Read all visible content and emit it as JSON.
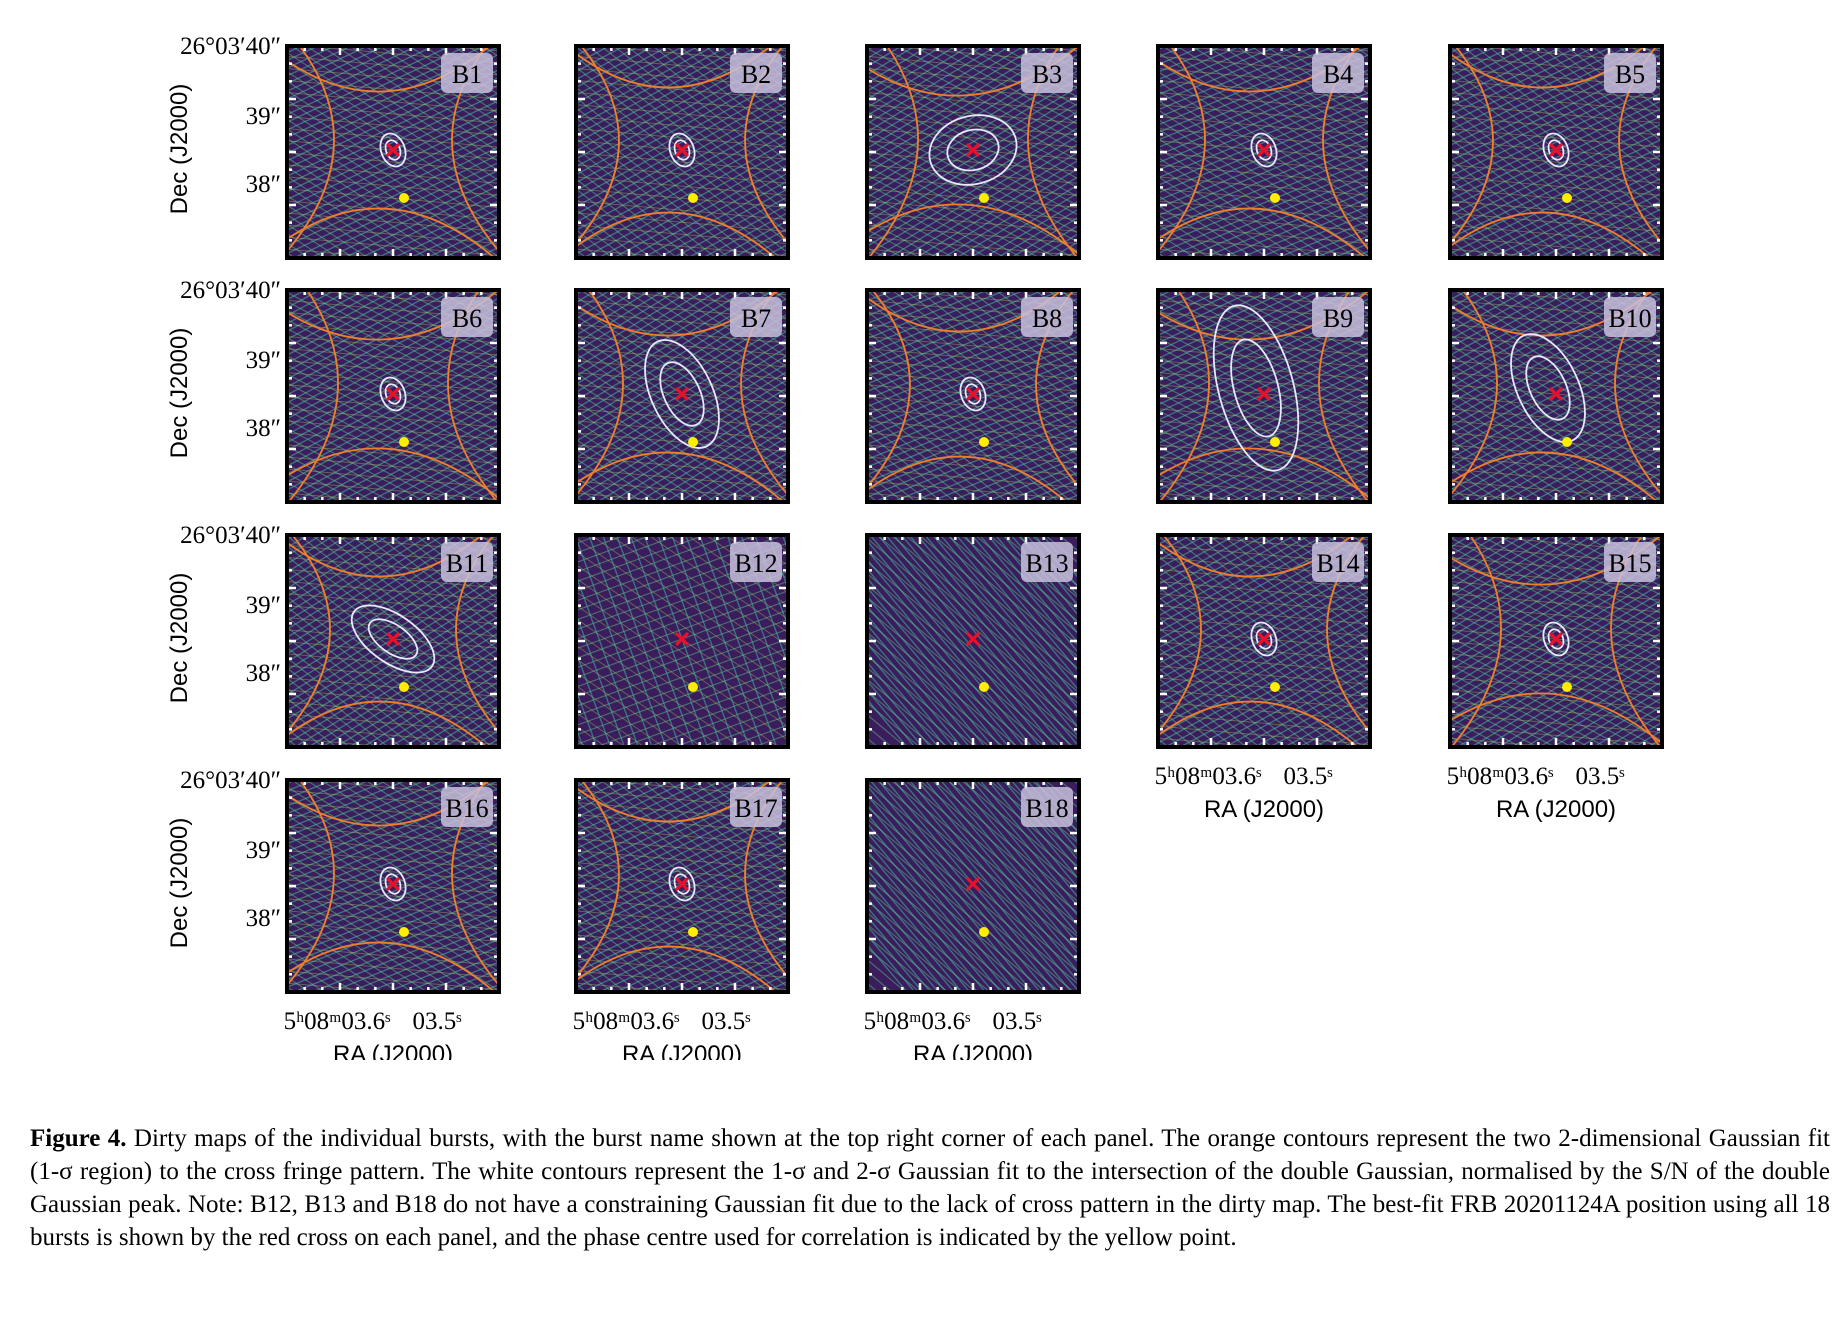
{
  "figure": {
    "panels": [
      "B1",
      "B2",
      "B3",
      "B4",
      "B5",
      "B6",
      "B7",
      "B8",
      "B9",
      "B10",
      "B11",
      "B12",
      "B13",
      "B14",
      "B15",
      "B16",
      "B17",
      "B18"
    ],
    "rows": [
      [
        1,
        2,
        3,
        4,
        5
      ],
      [
        6,
        7,
        8,
        9,
        10
      ],
      [
        11,
        12,
        13,
        14,
        15
      ],
      [
        16,
        17,
        18
      ]
    ],
    "no_fit_panels": [
      "B12",
      "B13",
      "B18"
    ],
    "large_fit_panels": [
      "B3",
      "B7",
      "B9",
      "B10",
      "B11"
    ],
    "y_tick_labels": [
      "26°03′40″",
      "39″",
      "38″"
    ],
    "x_tick_labels": [
      "5ʰ08ᵐ03.6ˢ",
      "03.5ˢ"
    ],
    "y_axis_label": "Dec (J2000)",
    "x_axis_label": "RA (J2000)",
    "colors": {
      "background": "#3b1c5c",
      "orange_contour": "#f07f2a",
      "white_contour": "#e8e8ff",
      "red_cross": "#e8102a",
      "yellow_point": "#ffee00"
    }
  },
  "caption": {
    "label": "Figure 4.",
    "text": "Dirty maps of the individual bursts, with the burst name shown at the top right corner of each panel. The orange contours represent the two 2-dimensional Gaussian fit (1-σ region) to the cross fringe pattern. The white contours represent the 1-σ and 2-σ Gaussian fit to the intersection of the double Gaussian, normalised by the S/N of the double Gaussian peak. Note: B12, B13 and B18 do not have a constraining Gaussian fit due to the lack of cross pattern in the dirty map. The best-fit FRB 20201124A position using all 18 bursts is shown by the red cross on each panel, and the phase centre used for correlation is indicated by the yellow point."
  }
}
